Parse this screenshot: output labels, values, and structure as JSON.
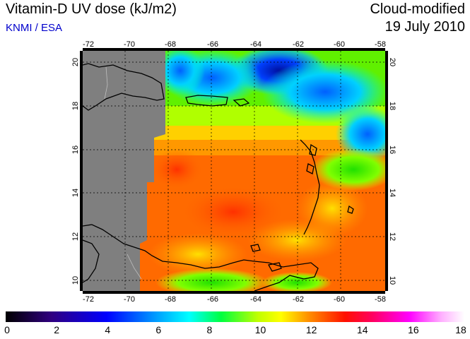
{
  "header": {
    "title": "Vitamin-D UV dose (kJ/m2)",
    "credit": "KNMI / ESA",
    "product": "Cloud-modified",
    "date": "19 July 2010"
  },
  "map": {
    "longitude_ticks": [
      "-72",
      "-70",
      "-68",
      "-66",
      "-64",
      "-62",
      "-60",
      "-58"
    ],
    "latitude_ticks": [
      "20",
      "18",
      "16",
      "14",
      "12",
      "10"
    ]
  },
  "colorbar": {
    "labels": [
      "0",
      "2",
      "4",
      "6",
      "8",
      "10",
      "12",
      "14",
      "16",
      "18"
    ],
    "colors": [
      "#000000",
      "#2a0080",
      "#0000ff",
      "#00a0ff",
      "#00ffff",
      "#00ff60",
      "#30ff00",
      "#c0ff00",
      "#ffff00",
      "#ffc000",
      "#ff8000",
      "#ff2000",
      "#ff0000",
      "#ff0060",
      "#ff00c0",
      "#ff60ff",
      "#ffc0ff",
      "#ffffff"
    ]
  }
}
